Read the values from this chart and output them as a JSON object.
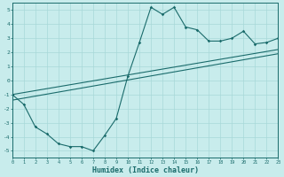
{
  "xlabel": "Humidex (Indice chaleur)",
  "xlim": [
    0,
    23
  ],
  "ylim": [
    -5.5,
    5.5
  ],
  "yticks": [
    -5,
    -4,
    -3,
    -2,
    -1,
    0,
    1,
    2,
    3,
    4,
    5
  ],
  "xticks": [
    0,
    1,
    2,
    3,
    4,
    5,
    6,
    7,
    8,
    9,
    10,
    11,
    12,
    13,
    14,
    15,
    16,
    17,
    18,
    19,
    20,
    21,
    22,
    23
  ],
  "bg_color": "#c8ecec",
  "grid_color": "#a8d8d8",
  "line_color": "#1a6b6b",
  "line1_x": [
    0,
    1,
    2,
    3,
    4,
    5,
    6,
    7,
    8,
    9,
    10,
    11,
    12,
    13,
    14,
    15,
    16,
    17,
    18,
    19,
    20,
    21,
    22,
    23
  ],
  "line1_y": [
    -1.0,
    -1.7,
    -3.3,
    -3.8,
    -4.5,
    -4.7,
    -4.7,
    -5.0,
    -3.9,
    -2.7,
    0.3,
    2.7,
    5.2,
    4.7,
    5.2,
    3.8,
    3.6,
    2.8,
    2.8,
    3.0,
    3.5,
    2.6,
    2.7,
    3.0
  ],
  "line2_x": [
    0,
    23
  ],
  "line2_y": [
    -1.0,
    2.2
  ],
  "line3_x": [
    0,
    23
  ],
  "line3_y": [
    -1.4,
    1.9
  ]
}
